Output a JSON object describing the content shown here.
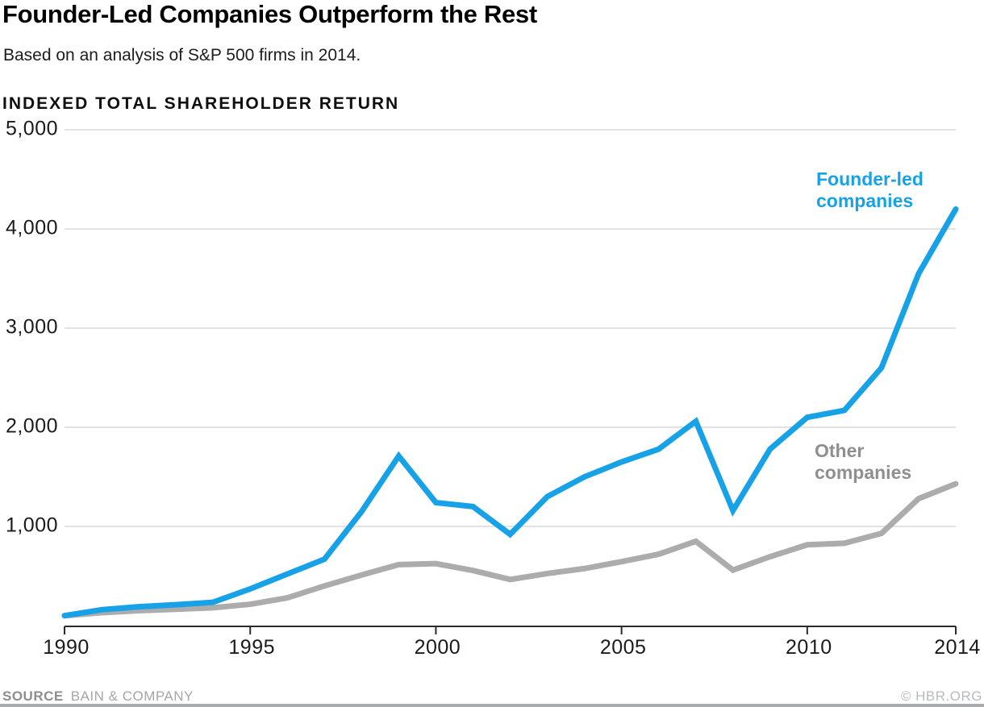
{
  "chart_data": {
    "type": "line",
    "title": "Founder-Led Companies Outperform the Rest",
    "subtitle": "Based on an analysis of S&P 500 firms in 2014.",
    "axis_label": "INDEXED TOTAL SHAREHOLDER RETURN",
    "x": [
      1990,
      1991,
      1992,
      1993,
      1994,
      1995,
      1996,
      1997,
      1998,
      1999,
      2000,
      2001,
      2002,
      2003,
      2004,
      2005,
      2006,
      2007,
      2008,
      2009,
      2010,
      2011,
      2012,
      2013,
      2014
    ],
    "series": [
      {
        "name": "Founder-led companies",
        "color": "#17a2e7",
        "values": [
          100,
          160,
          190,
          210,
          235,
          370,
          520,
          670,
          1150,
          1710,
          1240,
          1200,
          920,
          1300,
          1500,
          1650,
          1780,
          2060,
          1160,
          1780,
          2100,
          2170,
          2600,
          3550,
          4200
        ]
      },
      {
        "name": "Other companies",
        "color": "#acacac",
        "values": [
          100,
          130,
          150,
          165,
          180,
          215,
          280,
          400,
          510,
          615,
          625,
          555,
          465,
          525,
          575,
          645,
          720,
          850,
          560,
          695,
          815,
          830,
          930,
          1280,
          1430
        ]
      }
    ],
    "xlim": [
      1990,
      2014
    ],
    "ylim": [
      0,
      5000
    ],
    "y_ticks": [
      1000,
      2000,
      3000,
      4000,
      5000
    ],
    "y_tick_labels": [
      "1,000",
      "2,000",
      "3,000",
      "4,000",
      "5,000"
    ],
    "x_ticks": [
      1990,
      1995,
      2000,
      2005,
      2010,
      2014
    ],
    "x_tick_labels": [
      "1990",
      "1995",
      "2000",
      "2005",
      "2010",
      "2014"
    ],
    "grid": "horizontal-only",
    "legend_position": "inline-annotations"
  },
  "legend": {
    "founder_label": "Founder-led\ncompanies",
    "founder_color": "#17a2e7",
    "other_label": "Other\ncompanies",
    "other_color": "#8f8f8f"
  },
  "footer": {
    "source_label": "SOURCE",
    "source_value": "BAIN & COMPANY",
    "credit": "© HBR.ORG"
  },
  "colors": {
    "background": "#ffffff",
    "gridline": "#d8d8d8",
    "axis": "#2b2b2b",
    "title_text": "#000000",
    "founder_line": "#17a2e7",
    "other_line": "#acacac"
  }
}
